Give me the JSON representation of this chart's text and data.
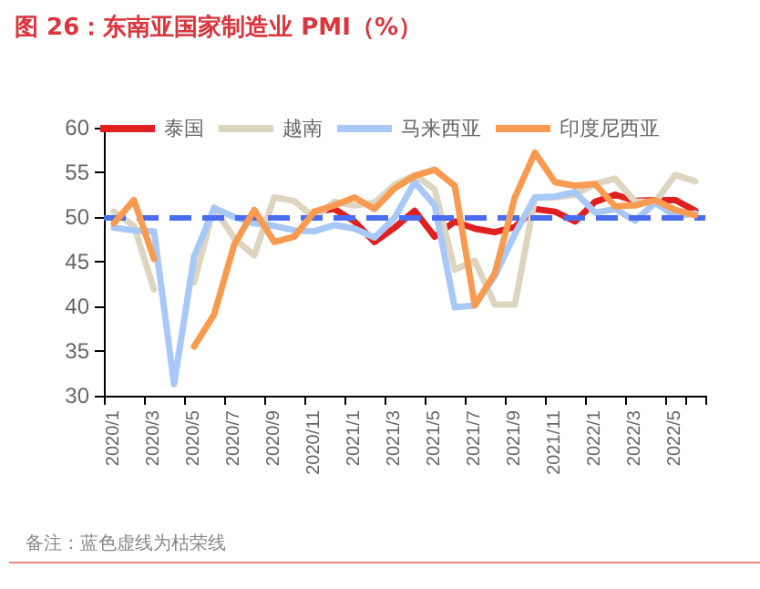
{
  "chart_data": {
    "type": "line",
    "title": "图 26：东南亚国家制造业 PMI（%）",
    "categories": [
      "2020/1",
      null,
      "2020/3",
      null,
      "2020/5",
      null,
      "2020/7",
      null,
      "2020/9",
      null,
      "2020/11",
      null,
      "2021/1",
      null,
      "2021/3",
      null,
      "2021/5",
      null,
      "2021/7",
      null,
      "2021/9",
      null,
      "2021/11",
      null,
      "2022/1",
      null,
      "2022/3",
      null,
      "2022/5",
      null
    ],
    "series": [
      {
        "name": "泰国",
        "color": "#e02020",
        "values": [
          null,
          null,
          null,
          null,
          null,
          null,
          null,
          null,
          null,
          null,
          50.6,
          50.9,
          49.5,
          47.2,
          48.8,
          50.7,
          47.8,
          49.5,
          48.7,
          48.3,
          48.9,
          50.9,
          50.6,
          49.5,
          51.7,
          52.5,
          51.8,
          51.9,
          51.9,
          50.7
        ]
      },
      {
        "name": "越南",
        "color": "#ddd5c0",
        "values": [
          50.6,
          49.0,
          41.9,
          null,
          42.7,
          51.1,
          47.6,
          45.7,
          52.2,
          51.8,
          49.9,
          51.7,
          51.3,
          51.6,
          53.6,
          54.7,
          53.1,
          44.1,
          45.1,
          40.2,
          40.2,
          52.1,
          52.2,
          52.5,
          53.7,
          54.3,
          51.7,
          51.7,
          54.7,
          54.0
        ]
      },
      {
        "name": "马来西亚",
        "color": "#a8c8f8",
        "values": [
          48.8,
          48.5,
          48.4,
          31.3,
          45.6,
          51.0,
          50.0,
          49.3,
          49.0,
          48.5,
          48.4,
          49.1,
          48.7,
          47.7,
          49.9,
          53.9,
          51.3,
          39.9,
          40.1,
          43.4,
          48.1,
          52.2,
          52.3,
          52.8,
          50.5,
          50.9,
          49.6,
          51.6,
          50.1,
          50.4
        ]
      },
      {
        "name": "印度尼西亚",
        "color": "#f89a50",
        "values": [
          49.3,
          51.9,
          45.3,
          null,
          35.5,
          39.1,
          46.9,
          50.8,
          47.2,
          47.8,
          50.6,
          51.3,
          52.2,
          50.9,
          53.2,
          54.6,
          55.3,
          53.5,
          40.1,
          43.7,
          52.2,
          57.2,
          53.9,
          53.5,
          53.7,
          51.2,
          51.3,
          51.9,
          50.8,
          50.2
        ]
      }
    ],
    "ylim": [
      30,
      60
    ],
    "yticks": [
      30,
      35,
      40,
      45,
      50,
      55,
      60
    ],
    "ref_lines": [
      {
        "axis": "y",
        "value": 50,
        "color": "#4a6cf0",
        "line_style": "dashed"
      }
    ],
    "annotations": [
      "备注：蓝色虚线为枯荣线"
    ],
    "legend": "top",
    "grid": false,
    "marker": "none",
    "line_style": "solid"
  }
}
